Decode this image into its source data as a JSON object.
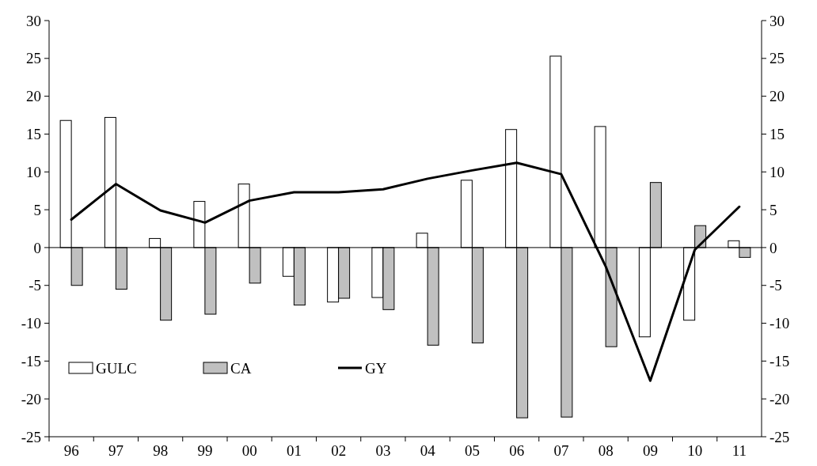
{
  "chart_data": {
    "type": "bar",
    "categories": [
      "96",
      "97",
      "98",
      "99",
      "00",
      "01",
      "02",
      "03",
      "04",
      "05",
      "06",
      "07",
      "08",
      "09",
      "10",
      "11"
    ],
    "series": [
      {
        "name": "GULC",
        "color": "#ffffff",
        "values": [
          16.8,
          17.2,
          1.2,
          6.1,
          8.4,
          -3.8,
          -7.2,
          -6.6,
          1.9,
          8.9,
          15.6,
          25.3,
          16.0,
          -11.8,
          -9.6,
          0.9
        ]
      },
      {
        "name": "CA",
        "color": "#c0c0c0",
        "values": [
          -5.0,
          -5.5,
          -9.6,
          -8.8,
          -4.7,
          -7.6,
          -6.7,
          -8.2,
          -12.9,
          -12.6,
          -22.5,
          -22.4,
          -13.1,
          8.6,
          2.9,
          -1.3
        ]
      },
      {
        "name": "GY",
        "type": "line",
        "color": "#000000",
        "values": [
          3.7,
          8.4,
          4.9,
          3.3,
          6.2,
          7.3,
          7.3,
          7.7,
          9.1,
          10.2,
          11.2,
          9.7,
          -2.5,
          -17.6,
          -0.3,
          5.4
        ]
      }
    ],
    "ylim": [
      -25,
      30
    ],
    "yticks": [
      -25,
      -20,
      -15,
      -10,
      -5,
      0,
      5,
      10,
      15,
      20,
      25,
      30
    ],
    "y2lim": [
      -25,
      30
    ],
    "y2ticks": [
      -25,
      -20,
      -15,
      -10,
      -5,
      0,
      5,
      10,
      15,
      20,
      25,
      30
    ],
    "ref_lines": [
      {
        "axis": "y",
        "value": 0,
        "color": "#000000"
      }
    ],
    "legend": "bottom left",
    "grid": false,
    "marker": "none",
    "line_style": "solid"
  }
}
